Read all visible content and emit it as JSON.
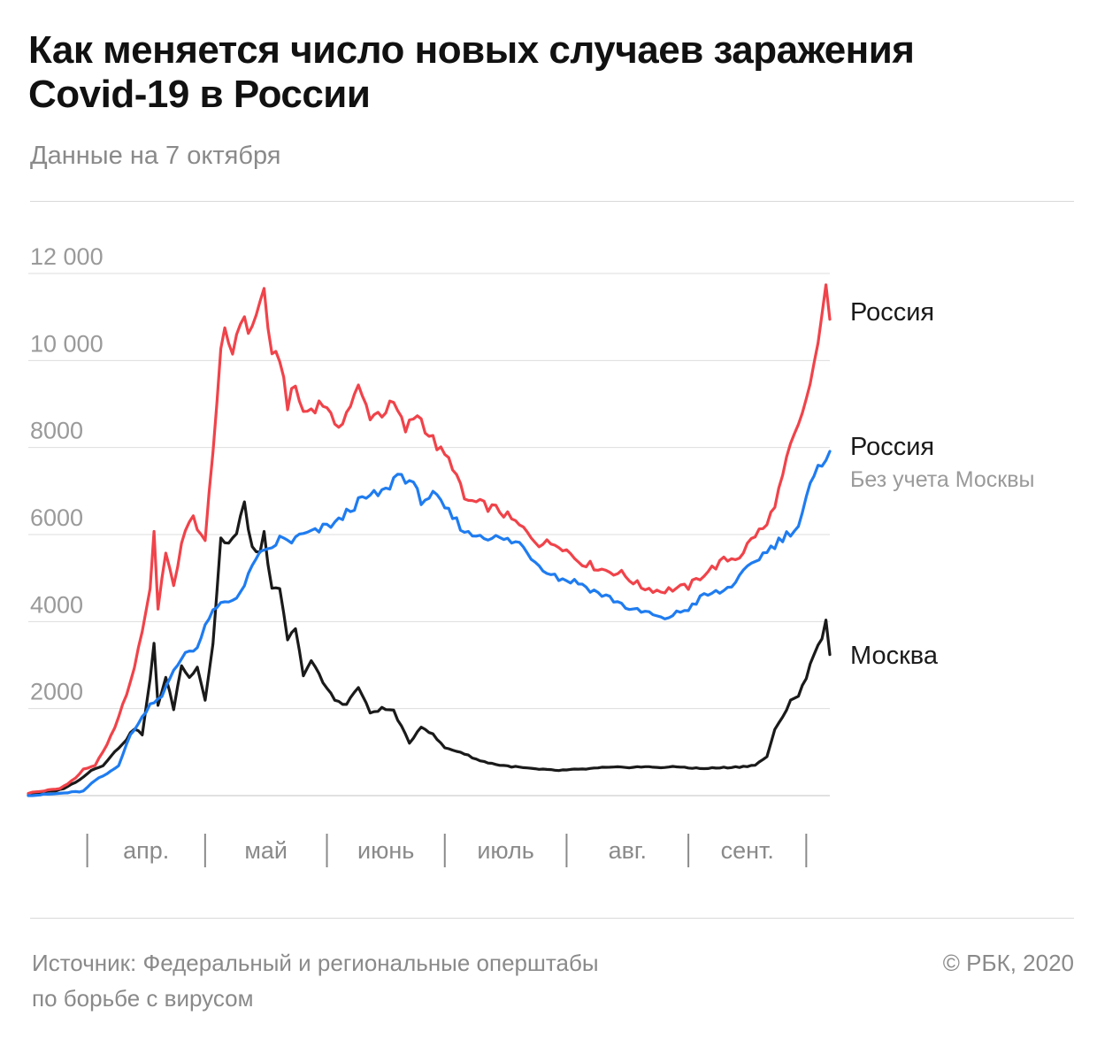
{
  "title_lines": [
    "Как меняется число новых случаев заражения",
    "Covid-19 в России"
  ],
  "subtitle": "Данные на 7 октября",
  "source_lines": [
    "Источник: Федеральный и региональные оперштабы",
    "по борьбе с вирусом"
  ],
  "copyright": "© РБК, 2020",
  "chart_data": {
    "type": "line",
    "title": "Как меняется число новых случаев заражения Covid-19 в России",
    "subtitle": "Данные на 7 октября",
    "xlabel": "",
    "ylabel": "",
    "x_range": [
      "2020-03-17",
      "2020-10-07"
    ],
    "ylim": [
      0,
      12000
    ],
    "yticks": [
      2000,
      4000,
      6000,
      8000,
      10000,
      12000
    ],
    "ytick_labels": [
      "2000",
      "4000",
      "6000",
      "8000",
      "10 000",
      "12 000"
    ],
    "months": [
      {
        "label": "апр.",
        "start": "2020-04-01",
        "end": "2020-05-01"
      },
      {
        "label": "май",
        "start": "2020-05-01",
        "end": "2020-06-01"
      },
      {
        "label": "июнь",
        "start": "2020-06-01",
        "end": "2020-07-01"
      },
      {
        "label": "июль",
        "start": "2020-07-01",
        "end": "2020-08-01"
      },
      {
        "label": "авг.",
        "start": "2020-08-01",
        "end": "2020-09-01"
      },
      {
        "label": "сент.",
        "start": "2020-09-01",
        "end": "2020-10-01"
      }
    ],
    "grid": true,
    "legend": "direct labels at right end of lines",
    "series": [
      {
        "name": "Россия",
        "color": "#f0434a",
        "points": [
          [
            "2020-03-17",
            60
          ],
          [
            "2020-03-25",
            160
          ],
          [
            "2020-03-29",
            400
          ],
          [
            "2020-03-31",
            600
          ],
          [
            "2020-04-03",
            700
          ],
          [
            "2020-04-06",
            1150
          ],
          [
            "2020-04-09",
            1800
          ],
          [
            "2020-04-12",
            2600
          ],
          [
            "2020-04-14",
            3350
          ],
          [
            "2020-04-17",
            4750
          ],
          [
            "2020-04-18",
            6100
          ],
          [
            "2020-04-19",
            4300
          ],
          [
            "2020-04-21",
            5650
          ],
          [
            "2020-04-23",
            4750
          ],
          [
            "2020-04-25",
            5850
          ],
          [
            "2020-04-28",
            6400
          ],
          [
            "2020-05-01",
            5800
          ],
          [
            "2020-05-03",
            8000
          ],
          [
            "2020-05-05",
            10100
          ],
          [
            "2020-05-06",
            10600
          ],
          [
            "2020-05-08",
            10200
          ],
          [
            "2020-05-10",
            11000
          ],
          [
            "2020-05-12",
            10700
          ],
          [
            "2020-05-14",
            11000
          ],
          [
            "2020-05-16",
            11650
          ],
          [
            "2020-05-18",
            10000
          ],
          [
            "2020-05-20",
            10100
          ],
          [
            "2020-05-22",
            9000
          ],
          [
            "2020-05-24",
            9400
          ],
          [
            "2020-05-26",
            8800
          ],
          [
            "2020-05-28",
            8900
          ],
          [
            "2020-05-30",
            9000
          ],
          [
            "2020-06-01",
            9000
          ],
          [
            "2020-06-03",
            8400
          ],
          [
            "2020-06-06",
            8800
          ],
          [
            "2020-06-09",
            9350
          ],
          [
            "2020-06-12",
            8750
          ],
          [
            "2020-06-15",
            8800
          ],
          [
            "2020-06-18",
            9000
          ],
          [
            "2020-06-21",
            8400
          ],
          [
            "2020-06-24",
            8800
          ],
          [
            "2020-06-27",
            8300
          ],
          [
            "2020-06-30",
            7900
          ],
          [
            "2020-07-03",
            7600
          ],
          [
            "2020-07-06",
            6800
          ],
          [
            "2020-07-10",
            6700
          ],
          [
            "2020-07-15",
            6550
          ],
          [
            "2020-07-20",
            6200
          ],
          [
            "2020-07-25",
            5800
          ],
          [
            "2020-07-30",
            5800
          ],
          [
            "2020-08-04",
            5400
          ],
          [
            "2020-08-10",
            5200
          ],
          [
            "2020-08-15",
            5100
          ],
          [
            "2020-08-20",
            4800
          ],
          [
            "2020-08-25",
            4700
          ],
          [
            "2020-08-28",
            4750
          ],
          [
            "2020-09-01",
            4800
          ],
          [
            "2020-09-05",
            5100
          ],
          [
            "2020-09-10",
            5400
          ],
          [
            "2020-09-14",
            5500
          ],
          [
            "2020-09-18",
            6000
          ],
          [
            "2020-09-21",
            6200
          ],
          [
            "2020-09-24",
            7000
          ],
          [
            "2020-09-27",
            8000
          ],
          [
            "2020-09-30",
            8700
          ],
          [
            "2020-10-03",
            9900
          ],
          [
            "2020-10-05",
            10900
          ],
          [
            "2020-10-06",
            11650
          ],
          [
            "2020-10-07",
            11100
          ]
        ]
      },
      {
        "name": "Россия",
        "sublabel": "Без учета Москвы",
        "color": "#1f7cf0",
        "points": [
          [
            "2020-03-17",
            0
          ],
          [
            "2020-03-25",
            50
          ],
          [
            "2020-03-31",
            100
          ],
          [
            "2020-04-03",
            350
          ],
          [
            "2020-04-06",
            500
          ],
          [
            "2020-04-09",
            700
          ],
          [
            "2020-04-12",
            1400
          ],
          [
            "2020-04-14",
            1650
          ],
          [
            "2020-04-17",
            2100
          ],
          [
            "2020-04-20",
            2300
          ],
          [
            "2020-04-23",
            2850
          ],
          [
            "2020-04-26",
            3300
          ],
          [
            "2020-04-29",
            3400
          ],
          [
            "2020-05-02",
            4100
          ],
          [
            "2020-05-05",
            4400
          ],
          [
            "2020-05-08",
            4500
          ],
          [
            "2020-05-11",
            4800
          ],
          [
            "2020-05-14",
            5500
          ],
          [
            "2020-05-17",
            5600
          ],
          [
            "2020-05-20",
            5900
          ],
          [
            "2020-05-23",
            5850
          ],
          [
            "2020-05-26",
            6000
          ],
          [
            "2020-05-29",
            6050
          ],
          [
            "2020-06-01",
            6200
          ],
          [
            "2020-06-04",
            6300
          ],
          [
            "2020-06-07",
            6600
          ],
          [
            "2020-06-10",
            6800
          ],
          [
            "2020-06-13",
            6900
          ],
          [
            "2020-06-16",
            7000
          ],
          [
            "2020-06-19",
            7400
          ],
          [
            "2020-06-22",
            7250
          ],
          [
            "2020-06-25",
            6800
          ],
          [
            "2020-06-28",
            6900
          ],
          [
            "2020-07-01",
            6600
          ],
          [
            "2020-07-04",
            6300
          ],
          [
            "2020-07-07",
            6000
          ],
          [
            "2020-07-10",
            6000
          ],
          [
            "2020-07-15",
            5900
          ],
          [
            "2020-07-20",
            5800
          ],
          [
            "2020-07-25",
            5300
          ],
          [
            "2020-07-30",
            5000
          ],
          [
            "2020-08-04",
            4900
          ],
          [
            "2020-08-08",
            4700
          ],
          [
            "2020-08-13",
            4500
          ],
          [
            "2020-08-18",
            4250
          ],
          [
            "2020-08-22",
            4200
          ],
          [
            "2020-08-25",
            4050
          ],
          [
            "2020-08-28",
            4150
          ],
          [
            "2020-09-01",
            4300
          ],
          [
            "2020-09-05",
            4600
          ],
          [
            "2020-09-10",
            4700
          ],
          [
            "2020-09-14",
            5000
          ],
          [
            "2020-09-18",
            5400
          ],
          [
            "2020-09-22",
            5700
          ],
          [
            "2020-09-26",
            6000
          ],
          [
            "2020-09-29",
            6200
          ],
          [
            "2020-10-02",
            7100
          ],
          [
            "2020-10-05",
            7650
          ],
          [
            "2020-10-07",
            8000
          ]
        ]
      },
      {
        "name": "Москва",
        "color": "#1a1a1a",
        "points": [
          [
            "2020-03-17",
            20
          ],
          [
            "2020-03-25",
            130
          ],
          [
            "2020-03-29",
            300
          ],
          [
            "2020-04-02",
            580
          ],
          [
            "2020-04-05",
            700
          ],
          [
            "2020-04-08",
            1000
          ],
          [
            "2020-04-11",
            1300
          ],
          [
            "2020-04-13",
            1550
          ],
          [
            "2020-04-15",
            1400
          ],
          [
            "2020-04-17",
            2650
          ],
          [
            "2020-04-18",
            3500
          ],
          [
            "2020-04-19",
            2100
          ],
          [
            "2020-04-21",
            2700
          ],
          [
            "2020-04-23",
            2000
          ],
          [
            "2020-04-25",
            3000
          ],
          [
            "2020-04-27",
            2700
          ],
          [
            "2020-04-29",
            3000
          ],
          [
            "2020-05-01",
            2200
          ],
          [
            "2020-05-03",
            3500
          ],
          [
            "2020-05-05",
            5900
          ],
          [
            "2020-05-07",
            5800
          ],
          [
            "2020-05-09",
            6000
          ],
          [
            "2020-05-11",
            6700
          ],
          [
            "2020-05-13",
            5700
          ],
          [
            "2020-05-15",
            5500
          ],
          [
            "2020-05-16",
            6100
          ],
          [
            "2020-05-18",
            4700
          ],
          [
            "2020-05-20",
            4700
          ],
          [
            "2020-05-22",
            3600
          ],
          [
            "2020-05-24",
            3800
          ],
          [
            "2020-05-26",
            2800
          ],
          [
            "2020-05-28",
            3100
          ],
          [
            "2020-05-31",
            2600
          ],
          [
            "2020-06-03",
            2200
          ],
          [
            "2020-06-06",
            2100
          ],
          [
            "2020-06-09",
            2500
          ],
          [
            "2020-06-12",
            1900
          ],
          [
            "2020-06-15",
            2000
          ],
          [
            "2020-06-18",
            1950
          ],
          [
            "2020-06-22",
            1200
          ],
          [
            "2020-06-25",
            1600
          ],
          [
            "2020-06-28",
            1400
          ],
          [
            "2020-07-01",
            1100
          ],
          [
            "2020-07-05",
            1000
          ],
          [
            "2020-07-10",
            800
          ],
          [
            "2020-07-15",
            700
          ],
          [
            "2020-07-20",
            650
          ],
          [
            "2020-07-25",
            600
          ],
          [
            "2020-07-30",
            580
          ],
          [
            "2020-08-04",
            600
          ],
          [
            "2020-08-10",
            640
          ],
          [
            "2020-08-15",
            650
          ],
          [
            "2020-08-20",
            660
          ],
          [
            "2020-08-25",
            650
          ],
          [
            "2020-08-30",
            660
          ],
          [
            "2020-09-04",
            620
          ],
          [
            "2020-09-09",
            640
          ],
          [
            "2020-09-14",
            660
          ],
          [
            "2020-09-18",
            700
          ],
          [
            "2020-09-21",
            900
          ],
          [
            "2020-09-23",
            1500
          ],
          [
            "2020-09-25",
            1800
          ],
          [
            "2020-09-27",
            2200
          ],
          [
            "2020-09-29",
            2300
          ],
          [
            "2020-10-01",
            2700
          ],
          [
            "2020-10-03",
            3300
          ],
          [
            "2020-10-05",
            3600
          ],
          [
            "2020-10-06",
            4100
          ],
          [
            "2020-10-07",
            3200
          ]
        ]
      }
    ]
  }
}
